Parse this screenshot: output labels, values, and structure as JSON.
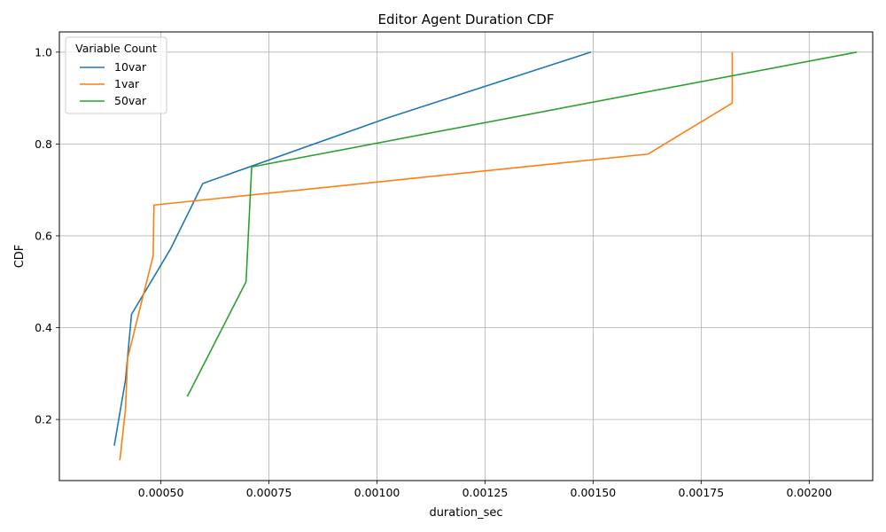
{
  "chart_data": {
    "type": "line",
    "title": "Editor Agent Duration CDF",
    "xlabel": "duration_sec",
    "ylabel": "CDF",
    "xlim": [
      0.000265,
      0.002147
    ],
    "ylim": [
      0.067,
      1.044
    ],
    "x_ticks": [
      0.0005,
      0.00075,
      0.001,
      0.00125,
      0.0015,
      0.00175,
      0.002
    ],
    "x_tick_labels": [
      "0.00050",
      "0.00075",
      "0.00100",
      "0.00125",
      "0.00150",
      "0.00175",
      "0.00200"
    ],
    "y_ticks": [
      0.2,
      0.4,
      0.6,
      0.8,
      1.0
    ],
    "y_tick_labels": [
      "0.2",
      "0.4",
      "0.6",
      "0.8",
      "1.0"
    ],
    "grid": true,
    "legend": {
      "title": "Variable Count",
      "placement": "top-left"
    },
    "series": [
      {
        "name": "10var",
        "color": "#1f77b4",
        "points": [
          {
            "x": 0.000392,
            "y": 0.143
          },
          {
            "x": 0.000418,
            "y": 0.286
          },
          {
            "x": 0.000432,
            "y": 0.429
          },
          {
            "x": 0.000522,
            "y": 0.571
          },
          {
            "x": 0.000597,
            "y": 0.714
          },
          {
            "x": 0.001025,
            "y": 0.857
          },
          {
            "x": 0.001495,
            "y": 1.0
          }
        ]
      },
      {
        "name": "1var",
        "color": "#ff7f0e",
        "points": [
          {
            "x": 0.000405,
            "y": 0.111
          },
          {
            "x": 0.000418,
            "y": 0.222
          },
          {
            "x": 0.000423,
            "y": 0.333
          },
          {
            "x": 0.000452,
            "y": 0.444
          },
          {
            "x": 0.000482,
            "y": 0.556
          },
          {
            "x": 0.000484,
            "y": 0.667
          },
          {
            "x": 0.001627,
            "y": 0.778
          },
          {
            "x": 0.001822,
            "y": 0.889
          },
          {
            "x": 0.001822,
            "y": 1.0
          }
        ]
      },
      {
        "name": "50var",
        "color": "#2ca02c",
        "points": [
          {
            "x": 0.000561,
            "y": 0.25
          },
          {
            "x": 0.000697,
            "y": 0.5
          },
          {
            "x": 0.00071,
            "y": 0.75
          },
          {
            "x": 0.00211,
            "y": 1.0
          }
        ]
      }
    ]
  }
}
